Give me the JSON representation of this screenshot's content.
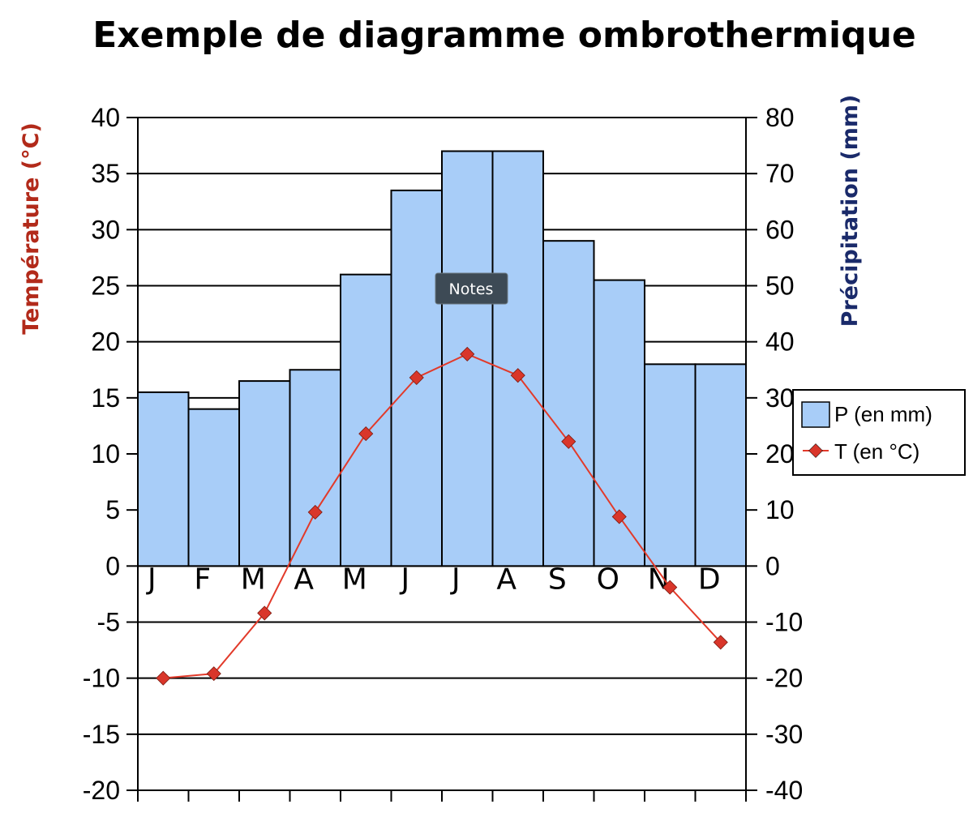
{
  "tooltip": {
    "label": "Notes"
  },
  "chart_data": {
    "type": "bar",
    "title": "Exemple de diagramme ombrothermique",
    "categories": [
      "J",
      "F",
      "M",
      "A",
      "M",
      "J",
      "J",
      "A",
      "S",
      "O",
      "N",
      "D"
    ],
    "series": [
      {
        "name": "P (en mm)",
        "type": "bar",
        "axis": "right",
        "values": [
          31,
          28,
          33,
          35,
          52,
          67,
          74,
          74,
          58,
          51,
          36,
          36
        ]
      },
      {
        "name": "T (en °C)",
        "type": "line",
        "axis": "left",
        "values": [
          -10,
          -9.6,
          -4.2,
          4.8,
          11.8,
          16.8,
          18.9,
          17,
          11.1,
          4.4,
          -1.9,
          -6.8
        ]
      }
    ],
    "y_left": {
      "label": "Température (°C)",
      "range": [
        -20,
        40
      ],
      "ticks": [
        40,
        35,
        30,
        25,
        20,
        15,
        10,
        5,
        0,
        -5,
        -10,
        -15,
        -20
      ]
    },
    "y_right": {
      "label": "Précipitation (mm)",
      "range": [
        -40,
        80
      ],
      "ticks": [
        80,
        70,
        60,
        50,
        40,
        30,
        20,
        10,
        0,
        -10,
        -20,
        -30,
        -40
      ]
    },
    "grid": true,
    "legend": "right",
    "colors": {
      "bar_fill": "#a8cdf8",
      "line": "#e23a2a",
      "marker": "#d9362a",
      "left_label": "#b22a1a",
      "right_label": "#1a2a6a",
      "tooltip_bg": "#3d4a55"
    }
  }
}
